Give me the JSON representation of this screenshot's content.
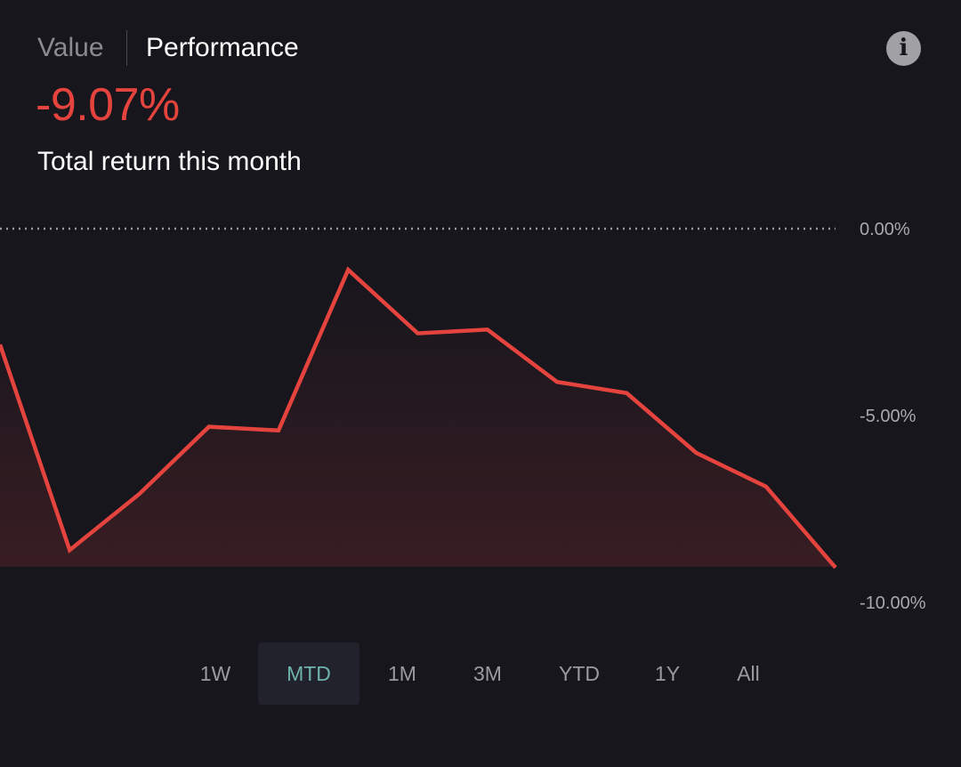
{
  "tabs": {
    "value": "Value",
    "performance": "Performance",
    "active": "performance"
  },
  "info_icon": "info-icon",
  "summary": {
    "return_value": "-9.07%",
    "label": "Total return this month"
  },
  "colors": {
    "background": "#17161d",
    "negative": "#e5433e",
    "accent": "#6fb3ad",
    "muted": "#9a9aa0"
  },
  "periods": [
    {
      "label": "1W",
      "active": false
    },
    {
      "label": "MTD",
      "active": true
    },
    {
      "label": "1M",
      "active": false
    },
    {
      "label": "3M",
      "active": false
    },
    {
      "label": "YTD",
      "active": false
    },
    {
      "label": "1Y",
      "active": false
    },
    {
      "label": "All",
      "active": false
    }
  ],
  "chart_data": {
    "type": "area",
    "title": "",
    "xlabel": "",
    "ylabel": "",
    "ylim": [
      -10,
      0
    ],
    "y_ticks": [
      "0.00%",
      "-5.00%",
      "-10.00%"
    ],
    "y_tick_values": [
      0,
      -5,
      -10
    ],
    "baseline_value": 0,
    "baseline_style": "dotted",
    "y_axis_position": "right",
    "grid": false,
    "series": [
      {
        "values": [
          -3.1,
          -8.6,
          -7.1,
          -5.3,
          -5.4,
          -1.1,
          -2.8,
          -2.7,
          -4.1,
          -4.4,
          -6.0,
          -6.9,
          -9.07
        ]
      }
    ]
  }
}
